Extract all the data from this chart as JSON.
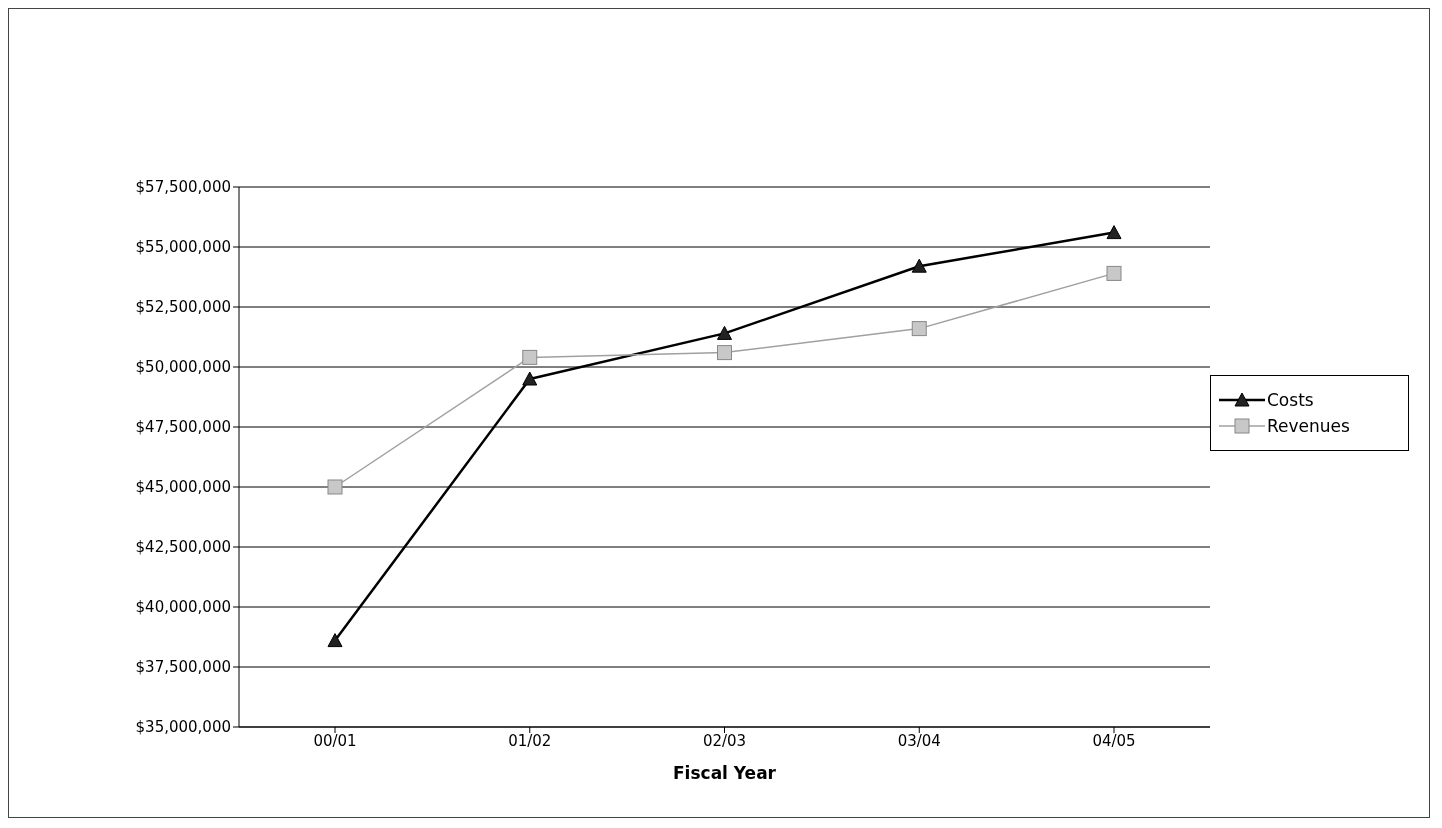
{
  "chart_data": {
    "type": "line",
    "xlabel": "Fiscal Year",
    "categories": [
      "00/01",
      "01/02",
      "02/03",
      "03/04",
      "04/05"
    ],
    "series": [
      {
        "name": "Costs",
        "color": "#000000",
        "marker": "triangle",
        "values": [
          38600000,
          49500000,
          51400000,
          54200000,
          55600000
        ]
      },
      {
        "name": "Revenues",
        "color": "#a0a0a0",
        "marker": "square",
        "values": [
          45000000,
          50400000,
          50600000,
          51600000,
          53900000
        ]
      }
    ],
    "ylim": [
      35000000,
      57500000
    ],
    "yticks": [
      {
        "value": 35000000,
        "label": "$35,000,000"
      },
      {
        "value": 37500000,
        "label": "$37,500,000"
      },
      {
        "value": 40000000,
        "label": "$40,000,000"
      },
      {
        "value": 42500000,
        "label": "$42,500,000"
      },
      {
        "value": 45000000,
        "label": "$45,000,000"
      },
      {
        "value": 47500000,
        "label": "$47,500,000"
      },
      {
        "value": 50000000,
        "label": "$50,000,000"
      },
      {
        "value": 52500000,
        "label": "$52,500,000"
      },
      {
        "value": 55000000,
        "label": "$55,000,000"
      },
      {
        "value": 57500000,
        "label": "$57,500,000"
      }
    ],
    "grid": "y",
    "legend": "right"
  }
}
